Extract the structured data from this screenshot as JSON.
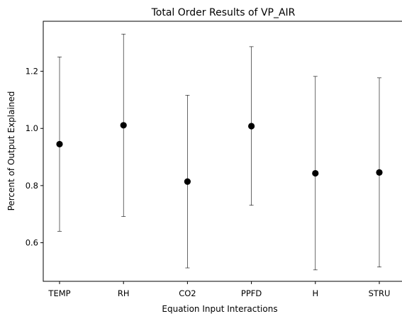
{
  "chart_data": {
    "type": "scatter",
    "title": "Total Order Results of VP_AIR",
    "xlabel": "Equation Input Interactions",
    "ylabel": "Percent of Output Explained",
    "categories": [
      "TEMP",
      "RH",
      "CO2",
      "PPFD",
      "H",
      "STRU"
    ],
    "values": [
      0.945,
      1.011,
      0.814,
      1.008,
      0.843,
      0.846
    ],
    "error_low": [
      0.64,
      0.692,
      0.512,
      0.731,
      0.505,
      0.515
    ],
    "error_high": [
      1.25,
      1.33,
      1.116,
      1.286,
      1.182,
      1.177
    ],
    "ylim": [
      0.465,
      1.375
    ],
    "yticks": [
      0.6,
      0.8,
      1.0,
      1.2
    ],
    "ytick_labels": [
      "0.6",
      "0.8",
      "1.0",
      "1.2"
    ],
    "grid": false,
    "marker_color": "#000000",
    "errorbar_color": "#000000"
  }
}
